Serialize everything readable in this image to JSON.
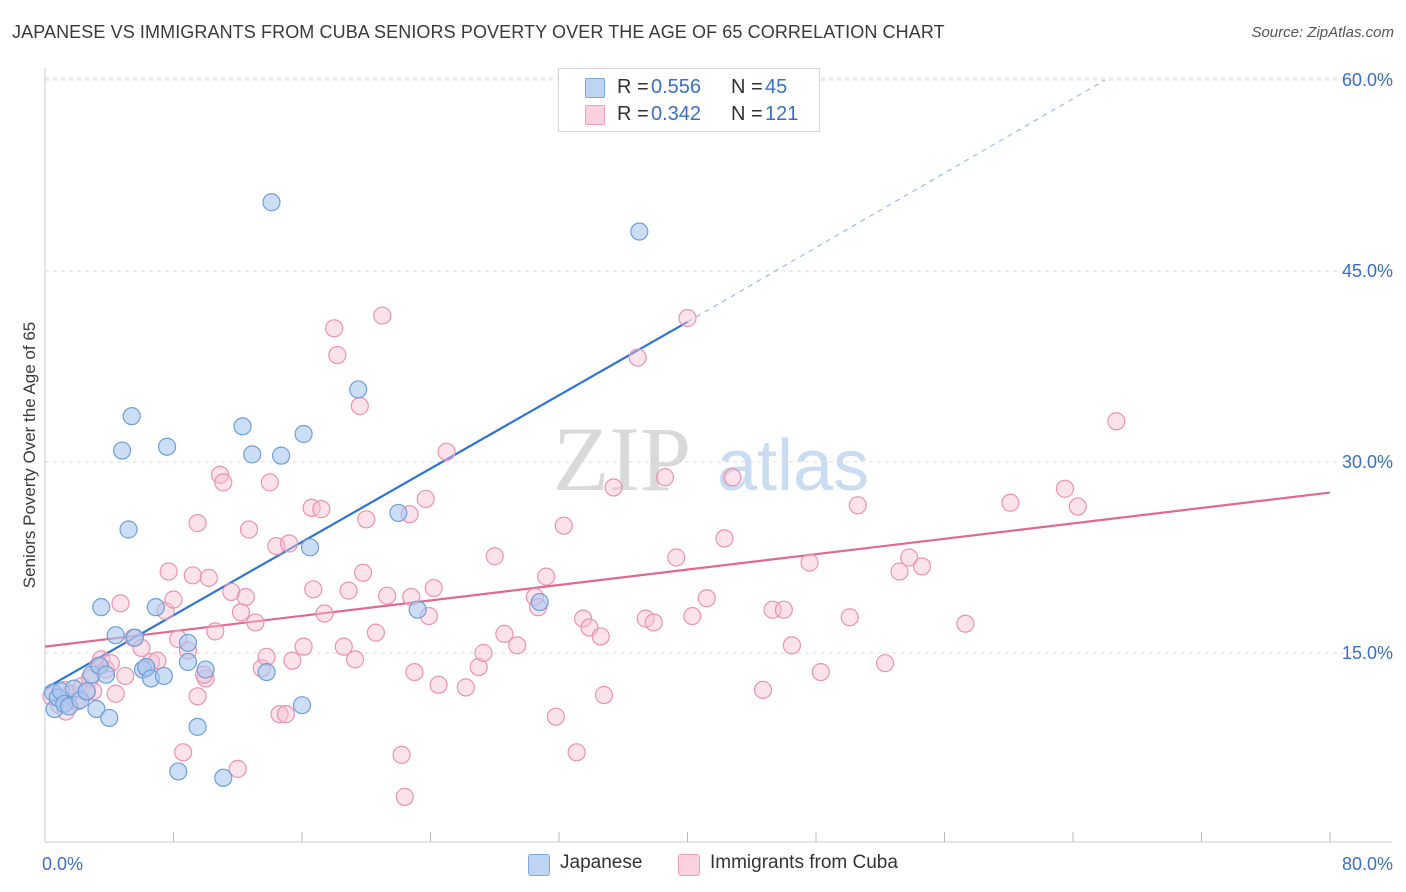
{
  "title": "JAPANESE VS IMMIGRANTS FROM CUBA SENIORS POVERTY OVER THE AGE OF 65 CORRELATION CHART",
  "source": "Source: ZipAtlas.com",
  "watermark": {
    "zip": "ZIP",
    "atlas": "atlas"
  },
  "legend": {
    "r_label": "R =",
    "n_label": "N =",
    "japanese": {
      "r": "0.556",
      "n": "45"
    },
    "cuba": {
      "r": "0.342",
      "n": "121"
    }
  },
  "bottom_legend": {
    "japanese": "Japanese",
    "cuba": "Immigrants from Cuba"
  },
  "colors": {
    "japanese_fill": "#a9c8f0",
    "japanese_stroke": "#6f9fd8",
    "japanese_line": "#2f74d0",
    "cuba_fill": "#f7bfd2",
    "cuba_stroke": "#ec92b1",
    "cuba_line": "#e06892",
    "tick_label": "#3b6fc4",
    "grid": "#dddddd"
  },
  "chart_data": {
    "type": "scatter",
    "title": "JAPANESE VS IMMIGRANTS FROM CUBA SENIORS POVERTY OVER THE AGE OF 65 CORRELATION CHART",
    "xlabel": "",
    "ylabel": "Seniors Poverty Over the Age of 65",
    "xlim": [
      0,
      80
    ],
    "ylim": [
      0,
      60
    ],
    "x_tick_labels": [
      "0.0%",
      "80.0%"
    ],
    "y_ticks": [
      15,
      30,
      45,
      60
    ],
    "y_tick_labels": [
      "15.0%",
      "30.0%",
      "45.0%",
      "60.0%"
    ],
    "grid": true,
    "series": [
      {
        "name": "Japanese",
        "r": 0.556,
        "n": 45,
        "trend": {
          "x0": 0,
          "y0": 12.2,
          "x1": 40,
          "y1": 41.0,
          "dashed_to_x": 66,
          "dashed_to_y": 60
        },
        "points": [
          [
            0.5,
            11.9
          ],
          [
            0.6,
            10.6
          ],
          [
            0.8,
            11.5
          ],
          [
            1.0,
            12.0
          ],
          [
            1.2,
            11.0
          ],
          [
            1.5,
            10.8
          ],
          [
            1.8,
            12.2
          ],
          [
            2.2,
            11.3
          ],
          [
            2.6,
            12.0
          ],
          [
            2.9,
            13.3
          ],
          [
            3.2,
            10.6
          ],
          [
            3.4,
            14.0
          ],
          [
            3.5,
            18.6
          ],
          [
            3.8,
            13.3
          ],
          [
            4.0,
            9.9
          ],
          [
            4.4,
            16.4
          ],
          [
            4.8,
            30.9
          ],
          [
            5.2,
            24.7
          ],
          [
            5.4,
            33.6
          ],
          [
            5.6,
            16.2
          ],
          [
            6.1,
            13.7
          ],
          [
            6.3,
            13.9
          ],
          [
            6.6,
            13.0
          ],
          [
            6.9,
            18.6
          ],
          [
            7.4,
            13.2
          ],
          [
            7.6,
            31.2
          ],
          [
            8.3,
            5.7
          ],
          [
            8.9,
            14.3
          ],
          [
            8.9,
            15.8
          ],
          [
            9.5,
            9.2
          ],
          [
            10.0,
            13.7
          ],
          [
            11.1,
            5.2
          ],
          [
            12.3,
            32.8
          ],
          [
            12.9,
            30.6
          ],
          [
            13.8,
            13.5
          ],
          [
            14.1,
            50.4
          ],
          [
            14.7,
            30.5
          ],
          [
            16.1,
            32.2
          ],
          [
            16.5,
            23.3
          ],
          [
            16.0,
            10.9
          ],
          [
            19.5,
            35.7
          ],
          [
            22.0,
            26.0
          ],
          [
            23.2,
            18.4
          ],
          [
            30.8,
            19.0
          ],
          [
            37.0,
            48.1
          ]
        ]
      },
      {
        "name": "Immigrants from Cuba",
        "r": 0.342,
        "n": 121,
        "trend": {
          "x0": 0,
          "y0": 15.5,
          "x1": 80,
          "y1": 27.6
        },
        "points": [
          [
            0.4,
            11.6
          ],
          [
            0.9,
            10.9
          ],
          [
            1.2,
            12.1
          ],
          [
            1.3,
            10.4
          ],
          [
            1.6,
            11.8
          ],
          [
            2.0,
            11.2
          ],
          [
            2.3,
            12.4
          ],
          [
            2.6,
            11.9
          ],
          [
            2.8,
            13.0
          ],
          [
            3.0,
            12.0
          ],
          [
            3.3,
            14.0
          ],
          [
            3.5,
            14.5
          ],
          [
            3.8,
            13.7
          ],
          [
            4.1,
            14.2
          ],
          [
            4.4,
            11.8
          ],
          [
            4.7,
            18.9
          ],
          [
            5.0,
            13.2
          ],
          [
            5.5,
            16.2
          ],
          [
            6.0,
            15.4
          ],
          [
            6.3,
            13.8
          ],
          [
            6.6,
            14.3
          ],
          [
            7.0,
            14.4
          ],
          [
            7.5,
            18.3
          ],
          [
            7.7,
            21.4
          ],
          [
            8.0,
            19.2
          ],
          [
            8.3,
            16.1
          ],
          [
            8.6,
            7.2
          ],
          [
            8.9,
            15.2
          ],
          [
            9.2,
            21.1
          ],
          [
            9.5,
            11.6
          ],
          [
            9.5,
            25.2
          ],
          [
            10.0,
            13.0
          ],
          [
            10.2,
            20.9
          ],
          [
            10.6,
            16.7
          ],
          [
            10.9,
            29.0
          ],
          [
            11.1,
            28.4
          ],
          [
            11.6,
            19.8
          ],
          [
            12.0,
            5.9
          ],
          [
            12.2,
            18.2
          ],
          [
            12.5,
            19.4
          ],
          [
            12.7,
            24.7
          ],
          [
            13.1,
            17.4
          ],
          [
            13.5,
            13.8
          ],
          [
            13.8,
            14.7
          ],
          [
            14.0,
            28.4
          ],
          [
            14.4,
            23.4
          ],
          [
            14.6,
            10.2
          ],
          [
            15.0,
            10.2
          ],
          [
            15.2,
            23.6
          ],
          [
            15.4,
            14.4
          ],
          [
            16.1,
            15.5
          ],
          [
            16.6,
            26.4
          ],
          [
            16.7,
            20.0
          ],
          [
            17.2,
            26.3
          ],
          [
            17.4,
            18.1
          ],
          [
            18.0,
            40.5
          ],
          [
            18.2,
            38.4
          ],
          [
            18.6,
            15.5
          ],
          [
            18.9,
            19.9
          ],
          [
            19.3,
            14.5
          ],
          [
            19.6,
            34.4
          ],
          [
            19.8,
            21.3
          ],
          [
            20.0,
            25.5
          ],
          [
            20.6,
            16.6
          ],
          [
            21.0,
            41.5
          ],
          [
            21.3,
            19.5
          ],
          [
            22.2,
            7.0
          ],
          [
            22.4,
            3.7
          ],
          [
            22.7,
            25.9
          ],
          [
            22.8,
            19.4
          ],
          [
            23.0,
            13.5
          ],
          [
            23.7,
            27.1
          ],
          [
            23.9,
            17.9
          ],
          [
            24.2,
            20.1
          ],
          [
            24.5,
            12.5
          ],
          [
            25.0,
            30.8
          ],
          [
            26.2,
            12.3
          ],
          [
            27.0,
            13.9
          ],
          [
            27.3,
            15.0
          ],
          [
            28.0,
            22.6
          ],
          [
            28.6,
            16.5
          ],
          [
            29.4,
            15.6
          ],
          [
            30.5,
            19.4
          ],
          [
            30.7,
            18.6
          ],
          [
            31.2,
            21.0
          ],
          [
            31.8,
            10.0
          ],
          [
            32.3,
            25.0
          ],
          [
            33.1,
            7.2
          ],
          [
            33.5,
            17.7
          ],
          [
            33.9,
            17.0
          ],
          [
            34.6,
            16.3
          ],
          [
            35.4,
            28.0
          ],
          [
            36.9,
            38.2
          ],
          [
            37.4,
            17.7
          ],
          [
            37.9,
            17.4
          ],
          [
            38.6,
            28.8
          ],
          [
            39.3,
            22.5
          ],
          [
            40.0,
            41.3
          ],
          [
            40.3,
            17.9
          ],
          [
            41.2,
            19.3
          ],
          [
            42.3,
            24.0
          ],
          [
            42.8,
            28.8
          ],
          [
            44.7,
            12.1
          ],
          [
            45.3,
            18.4
          ],
          [
            46.0,
            18.4
          ],
          [
            46.5,
            15.6
          ],
          [
            47.6,
            22.1
          ],
          [
            48.3,
            13.5
          ],
          [
            50.1,
            17.8
          ],
          [
            50.6,
            26.6
          ],
          [
            52.3,
            14.2
          ],
          [
            53.2,
            21.4
          ],
          [
            53.8,
            22.5
          ],
          [
            54.6,
            21.8
          ],
          [
            57.3,
            17.3
          ],
          [
            60.1,
            26.8
          ],
          [
            63.5,
            27.9
          ],
          [
            64.3,
            26.5
          ],
          [
            66.7,
            33.2
          ],
          [
            34.8,
            11.7
          ],
          [
            9.9,
            13.3
          ]
        ]
      }
    ]
  },
  "axes": {
    "ylabel": "Seniors Poverty Over the Age of 65",
    "x_min_label": "0.0%",
    "x_max_label": "80.0%"
  }
}
